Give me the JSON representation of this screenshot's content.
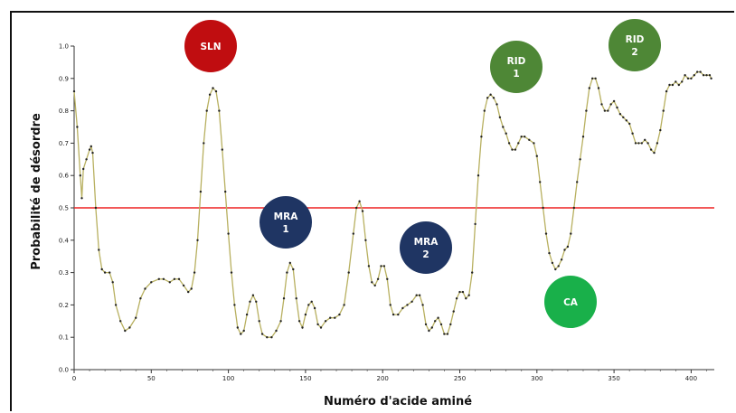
{
  "chart_data": {
    "type": "line",
    "title": "",
    "xlabel": "Numéro d'acide aminé",
    "ylabel": "Probabilité de désordre",
    "xlim": [
      0,
      415
    ],
    "ylim": [
      0,
      1.0
    ],
    "x_ticks": [
      0,
      50,
      100,
      150,
      200,
      250,
      300,
      350,
      400
    ],
    "y_ticks": [
      "0.0",
      "0.1",
      "0.2",
      "0.3",
      "0.4",
      "0.5",
      "0.6",
      "0.7",
      "0.8",
      "0.9",
      "1.0"
    ],
    "threshold": {
      "value": 0.5,
      "color": "#ee2222"
    },
    "series": [
      {
        "color": "#b8b060",
        "marker_color": "#222222",
        "points": [
          [
            0,
            0.86
          ],
          [
            2,
            0.75
          ],
          [
            4,
            0.6
          ],
          [
            5,
            0.53
          ],
          [
            6,
            0.62
          ],
          [
            8,
            0.65
          ],
          [
            10,
            0.68
          ],
          [
            11,
            0.69
          ],
          [
            12,
            0.67
          ],
          [
            14,
            0.5
          ],
          [
            16,
            0.37
          ],
          [
            18,
            0.31
          ],
          [
            20,
            0.3
          ],
          [
            23,
            0.3
          ],
          [
            25,
            0.27
          ],
          [
            27,
            0.2
          ],
          [
            30,
            0.15
          ],
          [
            33,
            0.12
          ],
          [
            36,
            0.13
          ],
          [
            40,
            0.16
          ],
          [
            43,
            0.22
          ],
          [
            46,
            0.25
          ],
          [
            50,
            0.27
          ],
          [
            55,
            0.28
          ],
          [
            58,
            0.28
          ],
          [
            62,
            0.27
          ],
          [
            65,
            0.28
          ],
          [
            68,
            0.28
          ],
          [
            71,
            0.26
          ],
          [
            74,
            0.24
          ],
          [
            76,
            0.25
          ],
          [
            78,
            0.3
          ],
          [
            80,
            0.4
          ],
          [
            82,
            0.55
          ],
          [
            84,
            0.7
          ],
          [
            86,
            0.8
          ],
          [
            88,
            0.85
          ],
          [
            90,
            0.87
          ],
          [
            92,
            0.86
          ],
          [
            94,
            0.8
          ],
          [
            96,
            0.68
          ],
          [
            98,
            0.55
          ],
          [
            100,
            0.42
          ],
          [
            102,
            0.3
          ],
          [
            104,
            0.2
          ],
          [
            106,
            0.13
          ],
          [
            108,
            0.11
          ],
          [
            110,
            0.12
          ],
          [
            112,
            0.17
          ],
          [
            114,
            0.21
          ],
          [
            116,
            0.23
          ],
          [
            118,
            0.21
          ],
          [
            120,
            0.15
          ],
          [
            122,
            0.11
          ],
          [
            125,
            0.1
          ],
          [
            128,
            0.1
          ],
          [
            131,
            0.12
          ],
          [
            134,
            0.15
          ],
          [
            136,
            0.22
          ],
          [
            138,
            0.3
          ],
          [
            140,
            0.33
          ],
          [
            142,
            0.31
          ],
          [
            144,
            0.22
          ],
          [
            146,
            0.15
          ],
          [
            148,
            0.13
          ],
          [
            150,
            0.17
          ],
          [
            152,
            0.2
          ],
          [
            154,
            0.21
          ],
          [
            156,
            0.19
          ],
          [
            158,
            0.14
          ],
          [
            160,
            0.13
          ],
          [
            163,
            0.15
          ],
          [
            166,
            0.16
          ],
          [
            169,
            0.16
          ],
          [
            172,
            0.17
          ],
          [
            175,
            0.2
          ],
          [
            178,
            0.3
          ],
          [
            181,
            0.42
          ],
          [
            183,
            0.5
          ],
          [
            185,
            0.52
          ],
          [
            187,
            0.49
          ],
          [
            189,
            0.4
          ],
          [
            191,
            0.32
          ],
          [
            193,
            0.27
          ],
          [
            195,
            0.26
          ],
          [
            197,
            0.28
          ],
          [
            199,
            0.32
          ],
          [
            201,
            0.32
          ],
          [
            203,
            0.28
          ],
          [
            205,
            0.2
          ],
          [
            207,
            0.17
          ],
          [
            210,
            0.17
          ],
          [
            213,
            0.19
          ],
          [
            216,
            0.2
          ],
          [
            219,
            0.21
          ],
          [
            222,
            0.23
          ],
          [
            224,
            0.23
          ],
          [
            226,
            0.2
          ],
          [
            228,
            0.14
          ],
          [
            230,
            0.12
          ],
          [
            232,
            0.13
          ],
          [
            234,
            0.15
          ],
          [
            236,
            0.16
          ],
          [
            238,
            0.14
          ],
          [
            240,
            0.11
          ],
          [
            242,
            0.11
          ],
          [
            244,
            0.14
          ],
          [
            246,
            0.18
          ],
          [
            248,
            0.22
          ],
          [
            250,
            0.24
          ],
          [
            252,
            0.24
          ],
          [
            254,
            0.22
          ],
          [
            256,
            0.23
          ],
          [
            258,
            0.3
          ],
          [
            260,
            0.45
          ],
          [
            262,
            0.6
          ],
          [
            264,
            0.72
          ],
          [
            266,
            0.8
          ],
          [
            268,
            0.84
          ],
          [
            270,
            0.85
          ],
          [
            272,
            0.84
          ],
          [
            274,
            0.82
          ],
          [
            276,
            0.78
          ],
          [
            278,
            0.75
          ],
          [
            280,
            0.73
          ],
          [
            282,
            0.7
          ],
          [
            284,
            0.68
          ],
          [
            286,
            0.68
          ],
          [
            288,
            0.7
          ],
          [
            290,
            0.72
          ],
          [
            292,
            0.72
          ],
          [
            295,
            0.71
          ],
          [
            298,
            0.7
          ],
          [
            300,
            0.66
          ],
          [
            302,
            0.58
          ],
          [
            304,
            0.5
          ],
          [
            306,
            0.42
          ],
          [
            308,
            0.36
          ],
          [
            310,
            0.33
          ],
          [
            312,
            0.31
          ],
          [
            314,
            0.32
          ],
          [
            316,
            0.34
          ],
          [
            318,
            0.37
          ],
          [
            320,
            0.38
          ],
          [
            322,
            0.42
          ],
          [
            324,
            0.5
          ],
          [
            326,
            0.58
          ],
          [
            328,
            0.65
          ],
          [
            330,
            0.72
          ],
          [
            332,
            0.8
          ],
          [
            334,
            0.87
          ],
          [
            336,
            0.9
          ],
          [
            338,
            0.9
          ],
          [
            340,
            0.87
          ],
          [
            342,
            0.82
          ],
          [
            344,
            0.8
          ],
          [
            346,
            0.8
          ],
          [
            348,
            0.82
          ],
          [
            350,
            0.83
          ],
          [
            352,
            0.81
          ],
          [
            354,
            0.79
          ],
          [
            356,
            0.78
          ],
          [
            358,
            0.77
          ],
          [
            360,
            0.76
          ],
          [
            362,
            0.73
          ],
          [
            364,
            0.7
          ],
          [
            366,
            0.7
          ],
          [
            368,
            0.7
          ],
          [
            370,
            0.71
          ],
          [
            372,
            0.7
          ],
          [
            374,
            0.68
          ],
          [
            376,
            0.67
          ],
          [
            378,
            0.7
          ],
          [
            380,
            0.74
          ],
          [
            382,
            0.8
          ],
          [
            384,
            0.86
          ],
          [
            386,
            0.88
          ],
          [
            388,
            0.88
          ],
          [
            390,
            0.89
          ],
          [
            392,
            0.88
          ],
          [
            394,
            0.89
          ],
          [
            396,
            0.91
          ],
          [
            398,
            0.9
          ],
          [
            400,
            0.9
          ],
          [
            402,
            0.91
          ],
          [
            404,
            0.92
          ],
          [
            406,
            0.92
          ],
          [
            408,
            0.91
          ],
          [
            410,
            0.91
          ],
          [
            412,
            0.91
          ],
          [
            413,
            0.9
          ]
        ]
      }
    ]
  },
  "regions": [
    {
      "id": "sln",
      "label_lines": [
        "SLN"
      ],
      "color": "#c00d10"
    },
    {
      "id": "mra1",
      "label_lines": [
        "MRA",
        "1"
      ],
      "color": "#1f3563"
    },
    {
      "id": "mra2",
      "label_lines": [
        "MRA",
        "2"
      ],
      "color": "#1f3563"
    },
    {
      "id": "rid1",
      "label_lines": [
        "RID",
        "1"
      ],
      "color": "#4e8736"
    },
    {
      "id": "rid2",
      "label_lines": [
        "RID",
        "2"
      ],
      "color": "#4e8736"
    },
    {
      "id": "ca",
      "label_lines": [
        "CA"
      ],
      "color": "#19b04a"
    }
  ]
}
